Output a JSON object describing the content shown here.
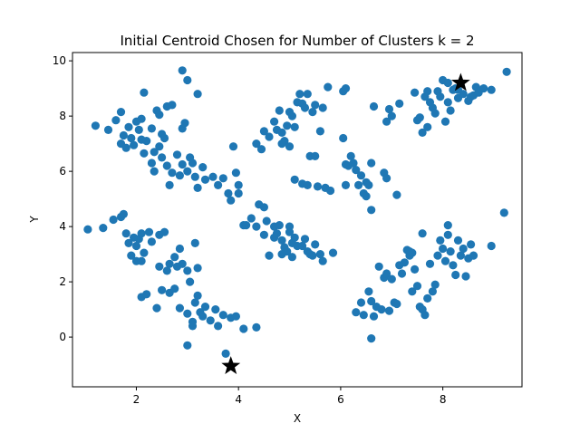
{
  "chart_data": {
    "type": "scatter",
    "title": "Initial Centroid Chosen for Number of Clusters k = 2",
    "xlabel": "X",
    "ylabel": "Y",
    "xlim": [
      0.75,
      9.55
    ],
    "ylim": [
      -1.8,
      10.3
    ],
    "xticks": [
      2,
      4,
      6,
      8
    ],
    "yticks": [
      0,
      2,
      4,
      6,
      8,
      10
    ],
    "grid": false,
    "colors": {
      "points": "#1f77b4",
      "centroids": "#000000"
    },
    "centroid_marker": "star",
    "series": [
      {
        "values": [
          [
            1.2,
            7.65
          ],
          [
            1.45,
            7.5
          ],
          [
            1.6,
            7.85
          ],
          [
            1.7,
            8.15
          ],
          [
            1.75,
            7.3
          ],
          [
            1.7,
            7.0
          ],
          [
            1.8,
            6.85
          ],
          [
            1.85,
            7.6
          ],
          [
            1.9,
            7.2
          ],
          [
            1.95,
            6.95
          ],
          [
            2.0,
            7.8
          ],
          [
            2.05,
            7.5
          ],
          [
            2.1,
            7.15
          ],
          [
            2.1,
            7.9
          ],
          [
            2.15,
            8.85
          ],
          [
            2.2,
            7.1
          ],
          [
            2.3,
            7.55
          ],
          [
            2.35,
            6.7
          ],
          [
            2.4,
            8.2
          ],
          [
            2.45,
            8.05
          ],
          [
            2.5,
            7.35
          ],
          [
            2.55,
            7.2
          ],
          [
            2.6,
            8.35
          ],
          [
            2.7,
            8.4
          ],
          [
            2.15,
            6.65
          ],
          [
            2.45,
            6.9
          ],
          [
            2.3,
            6.3
          ],
          [
            2.35,
            6.0
          ],
          [
            2.5,
            6.5
          ],
          [
            2.6,
            6.2
          ],
          [
            2.7,
            5.95
          ],
          [
            2.65,
            5.5
          ],
          [
            2.8,
            6.6
          ],
          [
            2.85,
            5.85
          ],
          [
            2.9,
            6.25
          ],
          [
            3.0,
            6.0
          ],
          [
            3.05,
            6.5
          ],
          [
            3.1,
            6.3
          ],
          [
            3.15,
            5.8
          ],
          [
            3.2,
            5.4
          ],
          [
            3.3,
            6.15
          ],
          [
            3.35,
            5.7
          ],
          [
            3.5,
            5.8
          ],
          [
            3.6,
            5.5
          ],
          [
            3.7,
            5.75
          ],
          [
            3.8,
            5.2
          ],
          [
            3.85,
            4.95
          ],
          [
            3.9,
            6.9
          ],
          [
            3.95,
            5.95
          ],
          [
            4.0,
            5.5
          ],
          [
            4.0,
            5.2
          ],
          [
            2.9,
            7.55
          ],
          [
            2.95,
            7.75
          ],
          [
            2.9,
            9.65
          ],
          [
            3.0,
            9.3
          ],
          [
            3.2,
            8.8
          ],
          [
            4.35,
            7.0
          ],
          [
            4.45,
            6.8
          ],
          [
            4.5,
            7.45
          ],
          [
            4.6,
            7.25
          ],
          [
            4.7,
            7.8
          ],
          [
            4.75,
            7.5
          ],
          [
            4.8,
            8.2
          ],
          [
            4.85,
            7.4
          ],
          [
            4.9,
            7.1
          ],
          [
            4.95,
            7.65
          ],
          [
            5.0,
            8.15
          ],
          [
            5.05,
            8.0
          ],
          [
            5.1,
            7.6
          ],
          [
            5.15,
            8.5
          ],
          [
            5.2,
            8.8
          ],
          [
            5.25,
            8.45
          ],
          [
            5.3,
            8.3
          ],
          [
            5.35,
            8.8
          ],
          [
            5.45,
            8.15
          ],
          [
            5.5,
            8.4
          ],
          [
            5.6,
            7.45
          ],
          [
            5.65,
            8.3
          ],
          [
            5.0,
            6.9
          ],
          [
            4.85,
            7.0
          ],
          [
            5.75,
            9.05
          ],
          [
            6.05,
            8.9
          ],
          [
            6.1,
            9.0
          ],
          [
            6.05,
            7.2
          ],
          [
            5.1,
            5.7
          ],
          [
            5.25,
            5.55
          ],
          [
            5.35,
            5.5
          ],
          [
            5.4,
            6.55
          ],
          [
            5.5,
            6.55
          ],
          [
            5.55,
            5.45
          ],
          [
            5.7,
            5.4
          ],
          [
            5.8,
            5.3
          ],
          [
            6.1,
            6.25
          ],
          [
            6.15,
            6.2
          ],
          [
            6.2,
            6.55
          ],
          [
            6.25,
            6.3
          ],
          [
            6.3,
            6.05
          ],
          [
            6.35,
            5.5
          ],
          [
            6.4,
            5.85
          ],
          [
            6.45,
            5.2
          ],
          [
            6.5,
            5.6
          ],
          [
            6.5,
            5.1
          ],
          [
            6.55,
            5.5
          ],
          [
            6.6,
            6.3
          ],
          [
            6.1,
            5.5
          ],
          [
            6.6,
            4.6
          ],
          [
            6.85,
            5.95
          ],
          [
            6.9,
            5.75
          ],
          [
            7.1,
            5.15
          ],
          [
            6.65,
            8.35
          ],
          [
            6.9,
            7.8
          ],
          [
            6.95,
            8.25
          ],
          [
            7.0,
            8.0
          ],
          [
            7.15,
            8.45
          ],
          [
            7.45,
            8.85
          ],
          [
            7.5,
            7.85
          ],
          [
            7.55,
            7.95
          ],
          [
            7.6,
            7.4
          ],
          [
            7.65,
            8.7
          ],
          [
            7.7,
            8.9
          ],
          [
            7.7,
            7.6
          ],
          [
            7.75,
            8.5
          ],
          [
            7.8,
            8.3
          ],
          [
            7.85,
            8.1
          ],
          [
            7.9,
            8.9
          ],
          [
            7.95,
            8.7
          ],
          [
            8.0,
            9.3
          ],
          [
            8.05,
            7.8
          ],
          [
            8.1,
            8.5
          ],
          [
            8.15,
            8.2
          ],
          [
            8.2,
            8.95
          ],
          [
            8.25,
            9.0
          ],
          [
            8.3,
            8.65
          ],
          [
            8.4,
            8.8
          ],
          [
            8.5,
            8.55
          ],
          [
            8.55,
            8.7
          ],
          [
            8.6,
            8.75
          ],
          [
            8.65,
            9.05
          ],
          [
            8.7,
            8.85
          ],
          [
            8.8,
            9.0
          ],
          [
            8.95,
            8.95
          ],
          [
            9.25,
            9.6
          ],
          [
            8.1,
            9.2
          ],
          [
            8.3,
            8.95
          ],
          [
            4.1,
            4.05
          ],
          [
            4.15,
            4.05
          ],
          [
            4.25,
            4.3
          ],
          [
            4.35,
            4.0
          ],
          [
            4.4,
            4.8
          ],
          [
            4.5,
            4.7
          ],
          [
            4.55,
            4.2
          ],
          [
            4.5,
            3.7
          ],
          [
            4.7,
            4.0
          ],
          [
            4.75,
            3.75
          ],
          [
            4.8,
            4.05
          ],
          [
            4.85,
            3.5
          ],
          [
            4.9,
            3.25
          ],
          [
            4.95,
            3.1
          ],
          [
            5.0,
            3.8
          ],
          [
            5.05,
            3.4
          ],
          [
            5.1,
            3.6
          ],
          [
            5.15,
            3.3
          ],
          [
            5.25,
            3.3
          ],
          [
            5.3,
            3.55
          ],
          [
            5.35,
            3.1
          ],
          [
            5.45,
            2.95
          ],
          [
            5.5,
            3.35
          ],
          [
            5.6,
            3.0
          ],
          [
            5.65,
            2.75
          ],
          [
            5.85,
            3.05
          ],
          [
            4.6,
            2.95
          ],
          [
            4.85,
            3.0
          ],
          [
            5.05,
            2.9
          ],
          [
            5.4,
            3.0
          ],
          [
            4.7,
            3.6
          ],
          [
            5.0,
            4.0
          ],
          [
            1.05,
            3.9
          ],
          [
            1.35,
            3.95
          ],
          [
            1.55,
            4.25
          ],
          [
            1.7,
            4.35
          ],
          [
            1.75,
            4.45
          ],
          [
            1.8,
            3.75
          ],
          [
            1.85,
            3.4
          ],
          [
            1.95,
            3.6
          ],
          [
            2.0,
            3.3
          ],
          [
            2.05,
            3.55
          ],
          [
            2.1,
            3.75
          ],
          [
            1.9,
            2.95
          ],
          [
            2.0,
            2.75
          ],
          [
            2.1,
            2.75
          ],
          [
            2.15,
            3.05
          ],
          [
            2.25,
            3.8
          ],
          [
            2.3,
            3.45
          ],
          [
            2.45,
            3.7
          ],
          [
            2.55,
            3.8
          ],
          [
            2.45,
            2.55
          ],
          [
            2.6,
            2.4
          ],
          [
            2.65,
            2.65
          ],
          [
            2.75,
            2.9
          ],
          [
            2.8,
            2.55
          ],
          [
            2.85,
            3.2
          ],
          [
            2.9,
            2.65
          ],
          [
            3.0,
            2.4
          ],
          [
            3.05,
            2.0
          ],
          [
            3.15,
            3.4
          ],
          [
            3.2,
            2.5
          ],
          [
            2.1,
            1.45
          ],
          [
            2.2,
            1.55
          ],
          [
            2.4,
            1.05
          ],
          [
            2.5,
            1.7
          ],
          [
            2.65,
            1.6
          ],
          [
            2.75,
            1.75
          ],
          [
            2.85,
            1.05
          ],
          [
            3.0,
            0.85
          ],
          [
            3.1,
            0.55
          ],
          [
            3.15,
            1.25
          ],
          [
            3.2,
            1.5
          ],
          [
            3.25,
            0.9
          ],
          [
            3.3,
            0.75
          ],
          [
            3.35,
            1.1
          ],
          [
            3.45,
            0.6
          ],
          [
            3.55,
            1.0
          ],
          [
            3.6,
            0.4
          ],
          [
            3.7,
            0.8
          ],
          [
            3.85,
            0.7
          ],
          [
            3.95,
            0.75
          ],
          [
            4.1,
            0.3
          ],
          [
            4.35,
            0.35
          ],
          [
            3.0,
            -0.3
          ],
          [
            3.75,
            -0.6
          ],
          [
            3.1,
            0.4
          ]
        ]
      },
      {
        "values": [
          [
            6.4,
            1.25
          ],
          [
            6.45,
            0.8
          ],
          [
            6.55,
            1.65
          ],
          [
            6.6,
            1.3
          ],
          [
            6.65,
            0.75
          ],
          [
            6.7,
            1.1
          ],
          [
            6.75,
            2.55
          ],
          [
            6.8,
            1.0
          ],
          [
            6.85,
            2.15
          ],
          [
            6.9,
            2.3
          ],
          [
            6.95,
            0.95
          ],
          [
            7.0,
            2.1
          ],
          [
            7.05,
            1.25
          ],
          [
            7.1,
            1.2
          ],
          [
            7.15,
            2.6
          ],
          [
            7.2,
            2.3
          ],
          [
            7.25,
            2.7
          ],
          [
            7.3,
            3.15
          ],
          [
            7.35,
            2.95
          ],
          [
            7.4,
            1.65
          ],
          [
            7.45,
            2.45
          ],
          [
            7.5,
            1.85
          ],
          [
            7.55,
            1.1
          ],
          [
            7.6,
            1.0
          ],
          [
            7.65,
            0.8
          ],
          [
            7.7,
            1.4
          ],
          [
            7.75,
            2.65
          ],
          [
            7.8,
            1.65
          ],
          [
            7.85,
            1.9
          ],
          [
            7.9,
            2.95
          ],
          [
            7.95,
            3.5
          ],
          [
            8.0,
            3.2
          ],
          [
            8.05,
            2.75
          ],
          [
            8.1,
            4.05
          ],
          [
            8.15,
            3.1
          ],
          [
            8.2,
            2.6
          ],
          [
            8.25,
            2.25
          ],
          [
            8.3,
            3.5
          ],
          [
            8.35,
            2.95
          ],
          [
            8.4,
            3.2
          ],
          [
            8.45,
            2.2
          ],
          [
            8.5,
            2.85
          ],
          [
            8.55,
            3.35
          ],
          [
            8.6,
            2.95
          ],
          [
            8.95,
            3.3
          ],
          [
            9.2,
            4.5
          ],
          [
            7.4,
            3.05
          ],
          [
            7.35,
            3.1
          ],
          [
            7.6,
            3.75
          ],
          [
            8.1,
            3.7
          ],
          [
            6.6,
            -0.05
          ],
          [
            6.3,
            0.9
          ]
        ]
      }
    ],
    "centroids": [
      [
        8.35,
        9.2
      ],
      [
        3.85,
        -1.05
      ]
    ]
  }
}
